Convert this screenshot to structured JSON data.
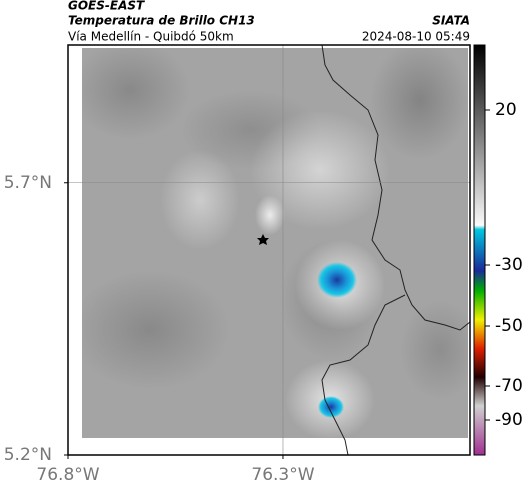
{
  "header": {
    "source": "GOES-EAST",
    "title": "Temperatura de Brillo CH13",
    "subtitle": "Vía Medellín - Quibdó 50km",
    "agency": "SIATA",
    "timestamp": "2024-08-10 05:49"
  },
  "map": {
    "xlim": [
      -76.8,
      -75.865
    ],
    "ylim": [
      5.2,
      5.953
    ],
    "xticks": [
      {
        "value": -76.8,
        "label": "76.8°W"
      },
      {
        "value": -76.3,
        "label": "76.3°W"
      }
    ],
    "yticks": [
      {
        "value": 5.2,
        "label": "5.2°N"
      },
      {
        "value": 5.7,
        "label": "5.7°N"
      }
    ],
    "grid": true
  },
  "colorbar": {
    "ticks": [
      20,
      -30,
      -50,
      -70,
      -90
    ]
  }
}
